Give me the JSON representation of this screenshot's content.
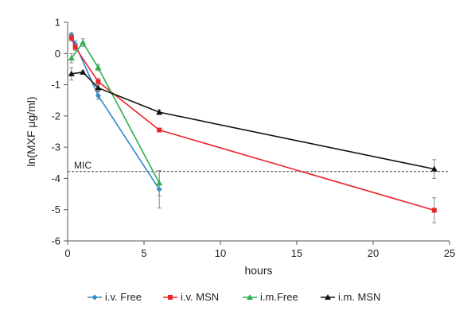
{
  "chart_data": {
    "type": "line",
    "title": "",
    "xlabel": "hours",
    "ylabel": "ln(MXF µg/ml)",
    "xlim": [
      0,
      25
    ],
    "ylim": [
      -6,
      1
    ],
    "xticks": [
      0,
      5,
      10,
      15,
      20,
      25
    ],
    "yticks": [
      -6,
      -5,
      -4,
      -3,
      -2,
      -1,
      0,
      1
    ],
    "grid": false,
    "legend_position": "bottom",
    "reference_line": {
      "label": "MIC",
      "y": -3.78,
      "style": "dashed"
    },
    "series": [
      {
        "name": "i.v. Free",
        "color": "#2e86c8",
        "marker": "diamond",
        "x": [
          0.25,
          0.5,
          2,
          6
        ],
        "y": [
          0.6,
          0.3,
          -1.35,
          -4.35
        ],
        "error": [
          0.06,
          0.1,
          0.12,
          0.6
        ]
      },
      {
        "name": "i.v. MSN",
        "color": "#e8262a",
        "marker": "square",
        "x": [
          0.25,
          0.5,
          2,
          6,
          24
        ],
        "y": [
          0.5,
          0.2,
          -0.9,
          -2.45,
          -5.02
        ],
        "error": [
          0.1,
          0.1,
          0.1,
          0.05,
          0.4
        ]
      },
      {
        "name": "i.m.Free",
        "color": "#2bb04a",
        "marker": "triangle",
        "x": [
          0.25,
          1,
          2,
          6
        ],
        "y": [
          -0.15,
          0.35,
          -0.45,
          -4.15
        ],
        "error": [
          0.15,
          0.12,
          0.1,
          0.4
        ]
      },
      {
        "name": "i.m. MSN",
        "color": "#111111",
        "marker": "triangle",
        "x": [
          0.25,
          1,
          2,
          6,
          24
        ],
        "y": [
          -0.65,
          -0.6,
          -1.1,
          -1.88,
          -3.7
        ],
        "error": [
          0.2,
          0.05,
          0.1,
          0.08,
          0.3
        ]
      }
    ]
  }
}
